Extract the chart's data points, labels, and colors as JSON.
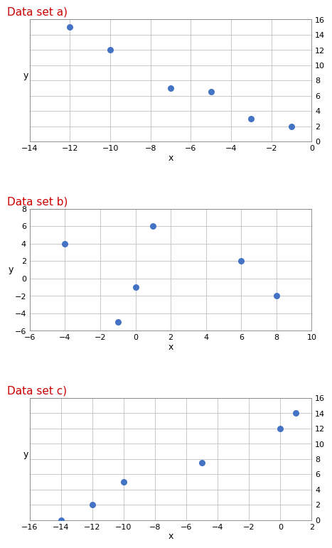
{
  "title_a": "Data set a)",
  "title_b": "Data set b)",
  "title_c": "Data set c)",
  "title_color": "#cc0000",
  "title_fontsize": 11,
  "dot_color": "#4472c4",
  "dot_size": 30,
  "a": {
    "x": [
      -12,
      -10,
      -7,
      -5,
      -3,
      -1
    ],
    "y": [
      15,
      12,
      7,
      6.5,
      3,
      2
    ],
    "xlim": [
      -14,
      0
    ],
    "ylim": [
      0,
      16
    ],
    "xticks": [
      -14,
      -12,
      -10,
      -8,
      -6,
      -4,
      -2,
      0
    ],
    "yticks": [
      0,
      2,
      4,
      6,
      8,
      10,
      12,
      14,
      16
    ],
    "yticklabels_right": true
  },
  "b": {
    "x": [
      -4,
      0,
      1,
      6,
      8,
      -1
    ],
    "y": [
      4,
      -1,
      6,
      2,
      -2,
      -5
    ],
    "xlim": [
      -6,
      10
    ],
    "ylim": [
      -6,
      8
    ],
    "xticks": [
      -6,
      -4,
      -2,
      0,
      2,
      4,
      6,
      8,
      10
    ],
    "yticks": [
      -6,
      -4,
      -2,
      0,
      2,
      4,
      6,
      8
    ],
    "yticklabels_right": false
  },
  "c": {
    "x": [
      -14,
      -12,
      -10,
      -5,
      0,
      1
    ],
    "y": [
      0,
      2,
      5,
      7.5,
      12,
      14
    ],
    "xlim": [
      -16,
      2
    ],
    "ylim": [
      0,
      16
    ],
    "xticks": [
      -16,
      -14,
      -12,
      -10,
      -8,
      -6,
      -4,
      -2,
      0,
      2
    ],
    "yticks": [
      0,
      2,
      4,
      6,
      8,
      10,
      12,
      14,
      16
    ],
    "yticklabels_right": true
  },
  "bg_color": "#ffffff",
  "grid_color": "#c0c0c0",
  "tick_labelsize": 8,
  "xlabel_fontsize": 9,
  "ylabel_fontsize": 9
}
